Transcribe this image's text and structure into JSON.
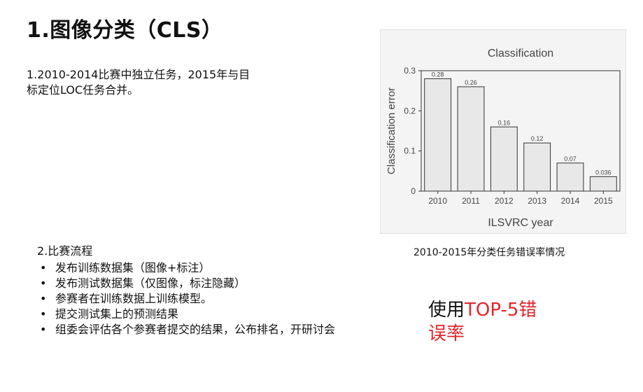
{
  "title": "1.图像分类（CLS）",
  "intro": {
    "line1": "1.2010-2014比赛中独立任务，2015年与目",
    "line2": "标定位LOC任务合并。"
  },
  "process": {
    "heading": "2.比赛流程",
    "items": [
      "发布训练数据集（图像+标注）",
      "发布测试数据集（仅图像，标注隐藏）",
      "参赛者在训练数据上训练模型。",
      "提交测试集上的预测结果",
      "组委会评估各个参赛者提交的结果，公布排名，开研讨会"
    ]
  },
  "caption": "2010-2015年分类任务错误率情况",
  "note": {
    "prefix": "使用",
    "highlight": "TOP-5错",
    "line2": "误率",
    "highlight_color": "#e8232a"
  },
  "chart_data": {
    "type": "bar",
    "title": "Classification",
    "xlabel": "ILSVRC year",
    "ylabel": "Classification error",
    "categories": [
      "2010",
      "2011",
      "2012",
      "2013",
      "2014",
      "2015"
    ],
    "values": [
      0.28,
      0.26,
      0.16,
      0.12,
      0.07,
      0.036
    ],
    "value_labels": [
      "0.28",
      "0.26",
      "0.16",
      "0.12",
      "0.07",
      "0.036"
    ],
    "yticks": [
      "0",
      "0.1",
      "0.2",
      "0.3"
    ],
    "ylim": [
      0,
      0.3
    ],
    "grid": false,
    "bar_color": "#e8e8e8"
  }
}
